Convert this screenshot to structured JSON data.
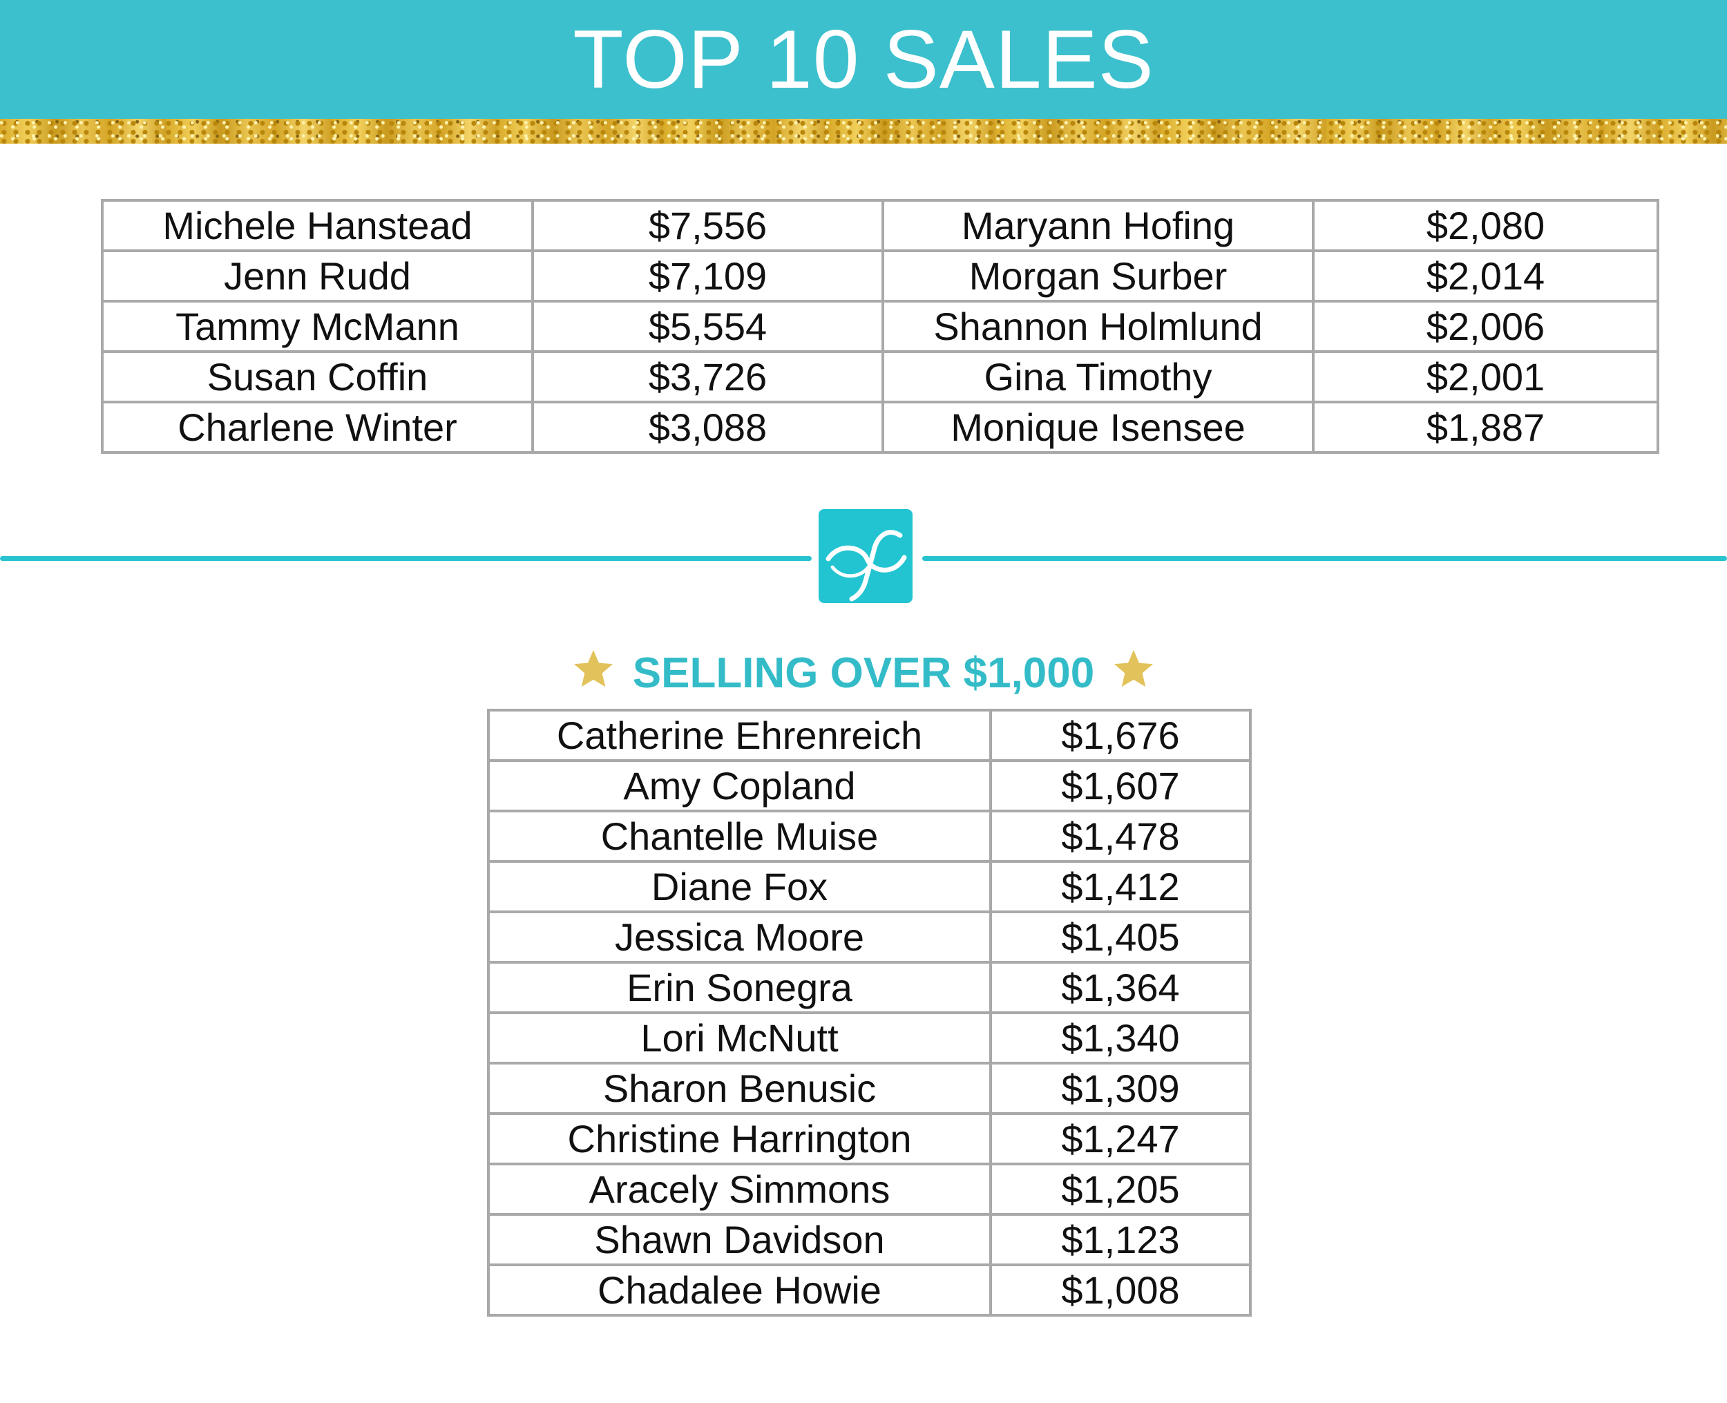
{
  "header": {
    "title": "TOP 10 SALES"
  },
  "top_sales": {
    "left": [
      {
        "name": "Michele Hanstead",
        "amount": "$7,556"
      },
      {
        "name": "Jenn Rudd",
        "amount": "$7,109"
      },
      {
        "name": "Tammy McMann",
        "amount": "$5,554"
      },
      {
        "name": "Susan Coffin",
        "amount": "$3,726"
      },
      {
        "name": "Charlene Winter",
        "amount": "$3,088"
      }
    ],
    "right": [
      {
        "name": "Maryann Hofing",
        "amount": "$2,080"
      },
      {
        "name": "Morgan Surber",
        "amount": "$2,014"
      },
      {
        "name": "Shannon Holmlund",
        "amount": "$2,006"
      },
      {
        "name": "Gina Timothy",
        "amount": "$2,001"
      },
      {
        "name": "Monique Isensee",
        "amount": "$1,887"
      }
    ]
  },
  "over_1000": {
    "title": "SELLING OVER $1,000",
    "rows": [
      {
        "name": "Catherine Ehrenreich",
        "amount": "$1,676"
      },
      {
        "name": "Amy Copland",
        "amount": "$1,607"
      },
      {
        "name": "Chantelle Muise",
        "amount": "$1,478"
      },
      {
        "name": "Diane Fox",
        "amount": "$1,412"
      },
      {
        "name": "Jessica Moore",
        "amount": "$1,405"
      },
      {
        "name": "Erin Sonegra",
        "amount": "$1,364"
      },
      {
        "name": "Lori McNutt",
        "amount": "$1,340"
      },
      {
        "name": "Sharon Benusic",
        "amount": "$1,309"
      },
      {
        "name": "Christine Harrington",
        "amount": "$1,247"
      },
      {
        "name": "Aracely Simmons",
        "amount": "$1,205"
      },
      {
        "name": "Shawn Davidson",
        "amount": "$1,123"
      },
      {
        "name": "Chadalee Howie",
        "amount": "$1,008"
      }
    ]
  },
  "icons": {
    "logo": "brand-logo-icon",
    "star": "star-icon"
  },
  "colors": {
    "banner": "#3cc0cd",
    "accent": "#33bcc8",
    "star": "#e2c25a",
    "grid": "#a9a9a9"
  }
}
